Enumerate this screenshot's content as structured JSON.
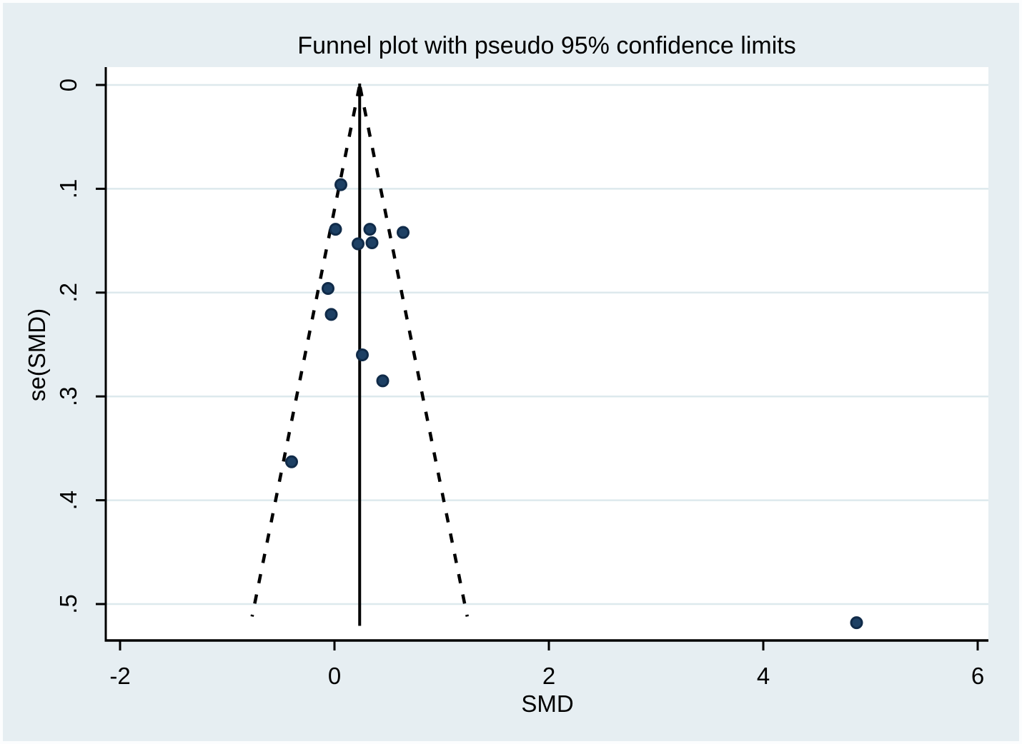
{
  "title": "Funnel plot with pseudo 95% confidence limits",
  "colors": {
    "page_background": "#e6eef2",
    "outer_edge": "#fcfdfe",
    "plot_background": "#ffffff",
    "gridline": "#dde9ed",
    "axis_line": "#000000",
    "estimate_line": "#000000",
    "ci_dashed_line": "#000000",
    "marker_fill": "#1d4064",
    "marker_stroke": "#102b49",
    "text": "#000000"
  },
  "chart_data": {
    "type": "scatter",
    "title": "Funnel plot with pseudo 95% confidence limits",
    "xlabel": "SMD",
    "ylabel": "se(SMD)",
    "x_ticks": [
      -2,
      0,
      2,
      4,
      6
    ],
    "x_tick_labels": [
      "-2",
      "0",
      "2",
      "4",
      "6"
    ],
    "y_ticks": [
      0,
      0.1,
      0.2,
      0.3,
      0.4,
      0.5
    ],
    "y_tick_labels": [
      "0",
      ".1",
      ".2",
      ".3",
      ".4",
      ".5"
    ],
    "xlim": [
      -2.13,
      6.1
    ],
    "ylim": [
      0,
      0.535
    ],
    "y_axis_inverted": true,
    "grid": true,
    "legend": false,
    "pooled_estimate_smd": 0.235,
    "pseudo_ci_multiplier": 1.96,
    "funnel_max_se": 0.512,
    "estimate_line_max_se": 0.521,
    "points": [
      {
        "smd": 0.06,
        "se": 0.096
      },
      {
        "smd": 0.01,
        "se": 0.139
      },
      {
        "smd": 0.33,
        "se": 0.139
      },
      {
        "smd": 0.64,
        "se": 0.142
      },
      {
        "smd": 0.22,
        "se": 0.153
      },
      {
        "smd": 0.35,
        "se": 0.152
      },
      {
        "smd": -0.06,
        "se": 0.196
      },
      {
        "smd": -0.03,
        "se": 0.221
      },
      {
        "smd": 0.26,
        "se": 0.26
      },
      {
        "smd": 0.45,
        "se": 0.285
      },
      {
        "smd": -0.4,
        "se": 0.363
      },
      {
        "smd": 4.87,
        "se": 0.518
      }
    ]
  }
}
